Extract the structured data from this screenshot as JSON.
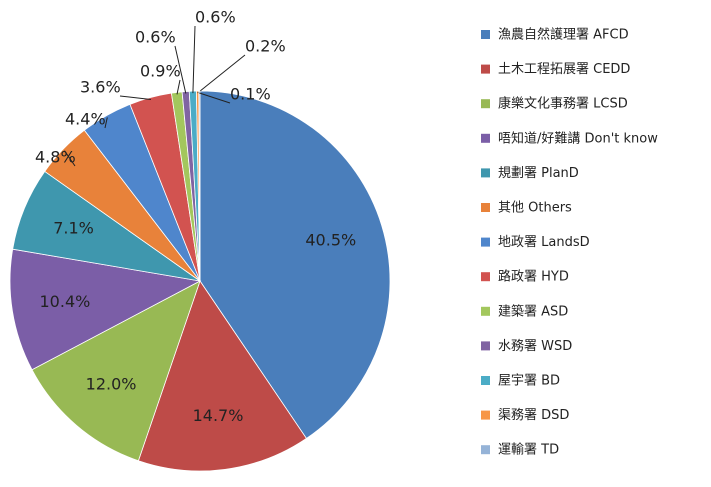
{
  "chart_data": {
    "type": "pie",
    "categories": [
      "漁農自然護理署 AFCD",
      "土木工程拓展署 CEDD",
      "康樂文化事務署 LCSD",
      "唔知道/好難講 Don't know",
      "規劃署 PlanD",
      "其他 Others",
      "地政署 LandsD",
      "路政署 HYD",
      "建築署 ASD",
      "水務署 WSD",
      "屋宇署 BD",
      "渠務署 DSD",
      "運輸署 TD"
    ],
    "values": [
      40.5,
      14.7,
      12.0,
      10.4,
      7.1,
      4.8,
      4.4,
      3.6,
      0.9,
      0.6,
      0.6,
      0.2,
      0.1
    ],
    "value_labels": [
      "40.5%",
      "14.7%",
      "12.0%",
      "10.4%",
      "7.1%",
      "4.8%",
      "4.4%",
      "3.6%",
      "0.9%",
      "0.6%",
      "0.6%",
      "0.2%",
      "0.1%"
    ],
    "colors": [
      "#4a7ebb",
      "#be4b48",
      "#98b954",
      "#7b5ea7",
      "#3f97ae",
      "#e8823a",
      "#4f86cc",
      "#d25350",
      "#a3c75d",
      "#8064a2",
      "#4bacc6",
      "#f79646",
      "#95b3d7"
    ],
    "legend": "right"
  }
}
